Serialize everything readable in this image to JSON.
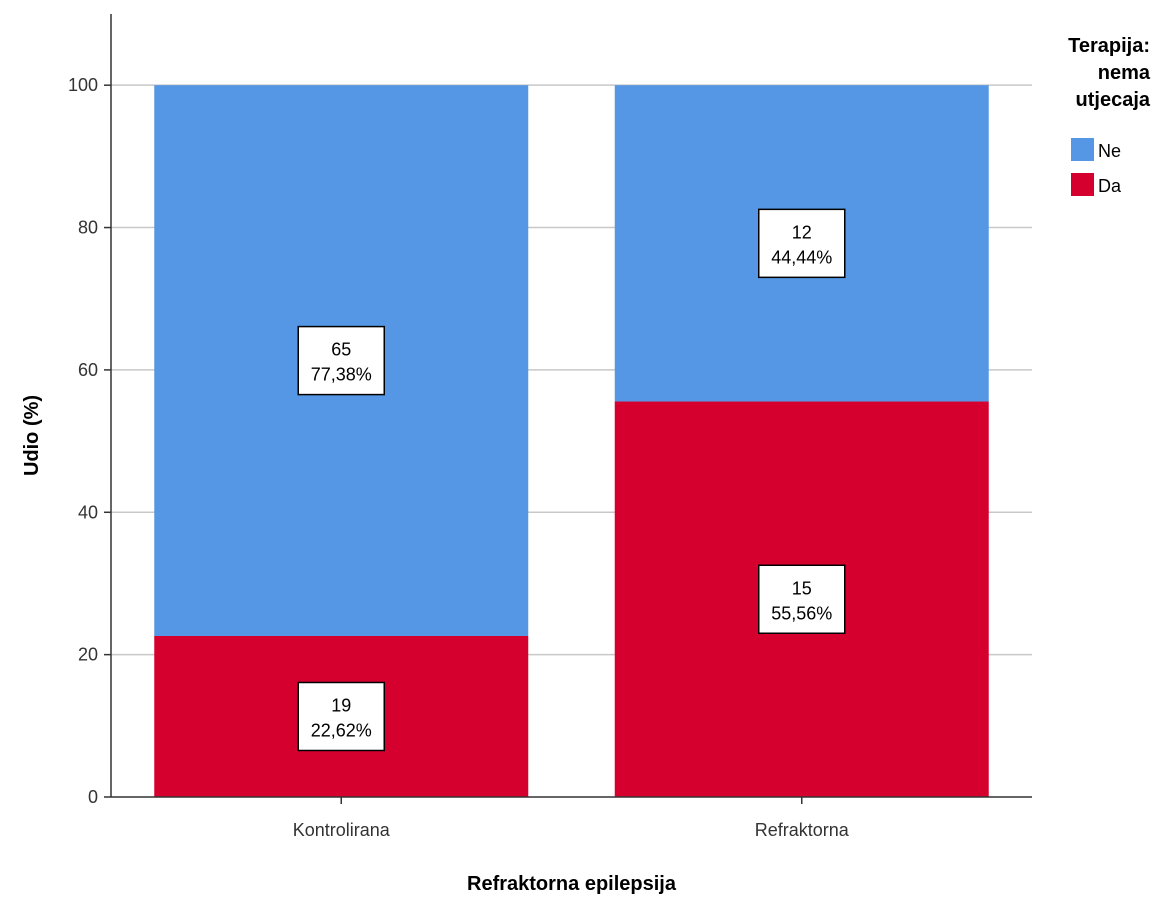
{
  "chart_data": {
    "type": "bar",
    "stacked": true,
    "title": "",
    "xlabel": "Refraktorna epilepsija",
    "ylabel": "Udio (%)",
    "ylim": [
      0,
      110
    ],
    "yticks": [
      "0",
      "20",
      "40",
      "60",
      "80",
      "100"
    ],
    "grid": true,
    "categories": [
      "Kontrolirana",
      "Refraktorna"
    ],
    "legend": {
      "title": [
        "Terapija:",
        "nema",
        "utjecaja"
      ],
      "position": "right"
    },
    "series": [
      {
        "name": "Da",
        "color": "#d6002f",
        "values": [
          22.62,
          55.56
        ],
        "counts": [
          "19",
          "15"
        ],
        "percent_labels": [
          "22,62%",
          "55,56%"
        ]
      },
      {
        "name": "Ne",
        "color": "#5597e4",
        "values": [
          77.38,
          44.44
        ],
        "counts": [
          "65",
          "12"
        ],
        "percent_labels": [
          "77,38%",
          "44,44%"
        ]
      }
    ],
    "legend_order": [
      "Ne",
      "Da"
    ]
  }
}
